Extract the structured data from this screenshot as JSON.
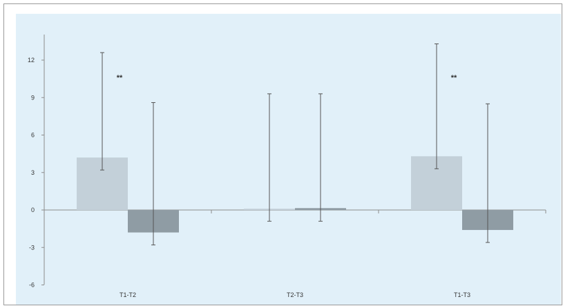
{
  "chart_data": {
    "type": "bar",
    "categories": [
      "T1-T2",
      "T2-T3",
      "T1-T3"
    ],
    "series": [
      {
        "values": [
          4.2,
          0.1,
          4.3
        ],
        "err_low": [
          3.2,
          -0.9,
          3.3
        ],
        "err_high": [
          12.6,
          9.3,
          13.3
        ]
      },
      {
        "values": [
          -1.8,
          0.15,
          -1.6
        ],
        "err_low": [
          -2.8,
          -0.9,
          -2.6
        ],
        "err_high": [
          8.6,
          9.3,
          8.5
        ]
      }
    ],
    "ylim": [
      -6,
      14
    ],
    "yticks": [
      -6,
      -3,
      0,
      3,
      6,
      9,
      12
    ],
    "significance": [
      "**",
      "",
      "**"
    ],
    "colors": {
      "series1": "#c3d0d9",
      "series2": "#8f9ca4",
      "background": "#e1f0f9",
      "axis": "#8c8c8c"
    }
  }
}
